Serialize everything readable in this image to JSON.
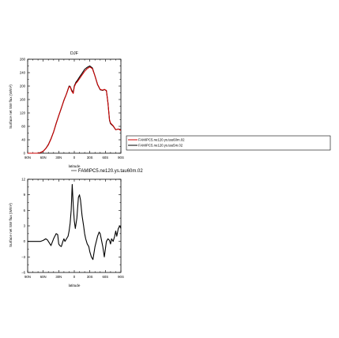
{
  "chart_data": [
    {
      "type": "line",
      "title": "DJF",
      "xlabel": "latitude",
      "ylabel": "Surface net SW flux (W/m²)",
      "xlim": [
        -90,
        90
      ],
      "ylim": [
        0,
        280
      ],
      "x_tick_values": [
        -90,
        -60,
        -30,
        0,
        30,
        60,
        90
      ],
      "x_tick_labels": [
        "90N",
        "60N",
        "30N",
        "0",
        "30S",
        "60S",
        "90S"
      ],
      "y_tick_values": [
        0,
        40,
        80,
        120,
        160,
        200,
        240,
        280
      ],
      "y_tick_labels": [
        "0",
        "40",
        "80",
        "120",
        "160",
        "200",
        "240",
        "280"
      ],
      "grid": false,
      "legend": {
        "placement": "right",
        "entries": [
          "FAMIPC5.ne120.ys.tau60m.02",
          "FAMIPC5.ne120.ys.tau5m.02"
        ]
      },
      "series": [
        {
          "name": "FAMIPC5.ne120.ys.tau60m.02",
          "color": "#cc0000",
          "x": [
            -90,
            -85,
            -80,
            -75,
            -70,
            -65,
            -60,
            -55,
            -50,
            -45,
            -40,
            -35,
            -30,
            -25,
            -20,
            -15,
            -12,
            -10,
            -8,
            -5,
            -2,
            0,
            3,
            6,
            10,
            15,
            20,
            25,
            30,
            35,
            40,
            45,
            50,
            55,
            58,
            62,
            65,
            68,
            70,
            75,
            80,
            85,
            90
          ],
          "y": [
            0,
            0,
            0,
            0,
            0,
            2,
            6,
            14,
            25,
            42,
            63,
            88,
            112,
            135,
            157,
            177,
            190,
            198,
            198,
            185,
            178,
            198,
            208,
            213,
            222,
            233,
            244,
            252,
            257,
            252,
            230,
            205,
            190,
            188,
            190,
            187,
            150,
            100,
            90,
            82,
            70,
            72,
            68
          ]
        },
        {
          "name": "FAMIPC5.ne120.ys.tau5m.02",
          "color": "#000000",
          "x": [
            -90,
            -85,
            -80,
            -75,
            -70,
            -65,
            -60,
            -55,
            -50,
            -45,
            -40,
            -35,
            -30,
            -25,
            -20,
            -15,
            -12,
            -10,
            -8,
            -5,
            -2,
            0,
            3,
            6,
            10,
            15,
            20,
            25,
            30,
            35,
            40,
            45,
            50,
            55,
            58,
            62,
            65,
            68,
            70,
            75,
            80,
            85,
            90
          ],
          "y": [
            0,
            0,
            0,
            0,
            0,
            2,
            6,
            14,
            26,
            43,
            63,
            89,
            112,
            134,
            158,
            177,
            191,
            200,
            199,
            188,
            180,
            200,
            211,
            217,
            227,
            238,
            250,
            256,
            260,
            254,
            230,
            204,
            189,
            187,
            190,
            186,
            150,
            98,
            88,
            81,
            70,
            72,
            70
          ]
        }
      ]
    },
    {
      "type": "line",
      "title": "",
      "xlabel": "latitude",
      "ylabel": "Surface net SW flux (W/m²)",
      "xlim": [
        -90,
        90
      ],
      "ylim": [
        -6,
        12
      ],
      "x_tick_values": [
        -90,
        -60,
        -30,
        0,
        30,
        60,
        90
      ],
      "x_tick_labels": [
        "90N",
        "60N",
        "30N",
        "0",
        "30S",
        "60S",
        "90S"
      ],
      "y_tick_values": [
        -6,
        -3,
        0,
        3,
        6,
        9,
        12
      ],
      "y_tick_labels": [
        "−6",
        "−3",
        "0",
        "3",
        "6",
        "9",
        "12"
      ],
      "grid": false,
      "legend": {
        "placement": "top",
        "entries": [
          "FAMIPC5.ne120.ys.tau60m.02"
        ]
      },
      "series": [
        {
          "name": "FAMIPC5.ne120.ys.tau60m.02",
          "color": "#000000",
          "x": [
            -90,
            -80,
            -70,
            -65,
            -60,
            -55,
            -52,
            -50,
            -45,
            -40,
            -35,
            -32,
            -30,
            -28,
            -25,
            -22,
            -20,
            -18,
            -15,
            -12,
            -10,
            -8,
            -6,
            -4,
            -2,
            0,
            2,
            5,
            8,
            10,
            12,
            15,
            18,
            20,
            22,
            25,
            28,
            30,
            33,
            36,
            40,
            45,
            48,
            50,
            52,
            55,
            58,
            60,
            62,
            65,
            68,
            70,
            72,
            75,
            78,
            80,
            82,
            85,
            88,
            90
          ],
          "y": [
            0,
            0,
            0,
            0,
            0.2,
            0.5,
            0.3,
            0,
            -0.8,
            0.5,
            1.5,
            1.3,
            -0.5,
            -0.8,
            -1.0,
            0,
            0.5,
            0,
            0.5,
            1.0,
            2.0,
            3.5,
            6.0,
            11.0,
            7.0,
            4.0,
            2.5,
            4.5,
            8.5,
            9.0,
            8.0,
            5.0,
            3.0,
            1.5,
            0.5,
            -0.5,
            -1.0,
            -2.0,
            -3.0,
            -3.5,
            -1.0,
            1.0,
            1.8,
            1.5,
            0.5,
            -1.0,
            -3.0,
            -1.5,
            0,
            0.5,
            0.2,
            -0.5,
            0.5,
            0,
            1.0,
            2.0,
            1.0,
            2.5,
            3.0,
            2.5
          ]
        }
      ]
    }
  ]
}
